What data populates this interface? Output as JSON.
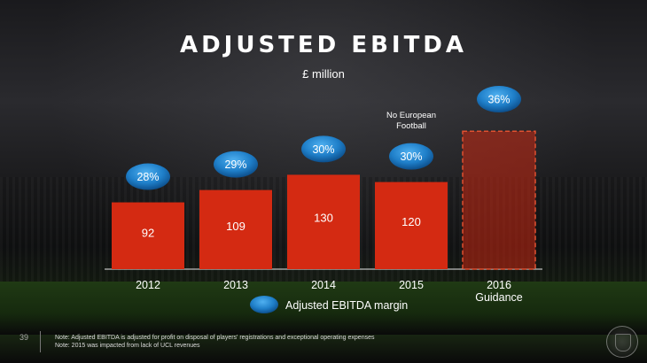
{
  "title": "ADJUSTED EBITDA",
  "subtitle": "£ million",
  "page_number": "39",
  "notes": [
    "Note:  Adjusted EBITDA is adjusted for profit on disposal of players' registrations and exceptional operating expenses",
    "Note: 2015 was impacted from lack of UCL revenues"
  ],
  "colors": {
    "bar": "#d42a12",
    "bar_guidance": "#c82812",
    "bubble": "#1f7fc9"
  },
  "chart_data": {
    "type": "bar",
    "title": "ADJUSTED EBITDA",
    "ylabel": "£ million",
    "xlabel": "",
    "categories": [
      "2012",
      "2013",
      "2014",
      "2015",
      "2016"
    ],
    "category_sublabels": [
      "",
      "",
      "",
      "",
      "Guidance"
    ],
    "ylim": [
      0,
      200
    ],
    "series": [
      {
        "name": "Adjusted EBITDA",
        "values": [
          92,
          109,
          130,
          120,
          190
        ],
        "value_labels": [
          "92",
          "109",
          "130",
          "120",
          ""
        ],
        "styles": [
          "solid",
          "solid",
          "solid",
          "solid",
          "dashed"
        ]
      },
      {
        "name": "Adjusted EBITDA margin",
        "values": [
          28,
          29,
          30,
          30,
          36
        ],
        "labels": [
          "28%",
          "29%",
          "30%",
          "30%",
          "36%"
        ]
      }
    ],
    "annotations": [
      {
        "category": "2015",
        "lines": [
          "No European",
          "Football"
        ]
      }
    ],
    "legend": {
      "label": "Adjusted EBITDA margin",
      "placement": "bottom-center"
    },
    "grid": false
  }
}
